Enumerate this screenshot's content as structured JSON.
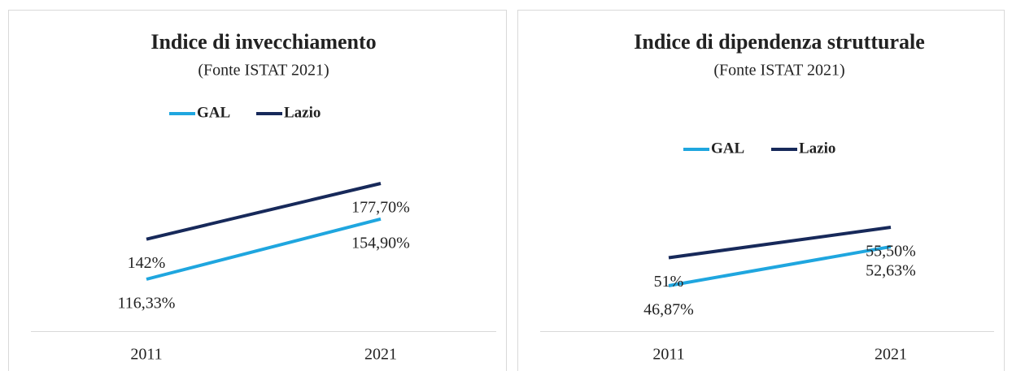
{
  "chart_data": [
    {
      "type": "line",
      "title": "Indice di invecchiamento",
      "subtitle": "(Fonte ISTAT 2021)",
      "categories": [
        "2011",
        "2021"
      ],
      "series": [
        {
          "name": "GAL",
          "color": "#1fa6df",
          "values": [
            116.33,
            154.9
          ],
          "value_labels": [
            "116,33%",
            "154,90%"
          ]
        },
        {
          "name": "Lazio",
          "color": "#17295a",
          "values": [
            142,
            177.7
          ],
          "value_labels": [
            "142%",
            "177,70%"
          ]
        }
      ],
      "legend": "top"
    },
    {
      "type": "line",
      "title": "Indice di dipendenza strutturale",
      "subtitle": "(Fonte ISTAT 2021)",
      "categories": [
        "2011",
        "2021"
      ],
      "series": [
        {
          "name": "GAL",
          "color": "#1fa6df",
          "values": [
            46.87,
            52.63
          ],
          "value_labels": [
            "46,87%",
            "52,63%"
          ]
        },
        {
          "name": "Lazio",
          "color": "#17295a",
          "values": [
            51,
            55.5
          ],
          "value_labels": [
            "51%",
            "55,50%"
          ]
        }
      ],
      "legend": "top"
    }
  ]
}
